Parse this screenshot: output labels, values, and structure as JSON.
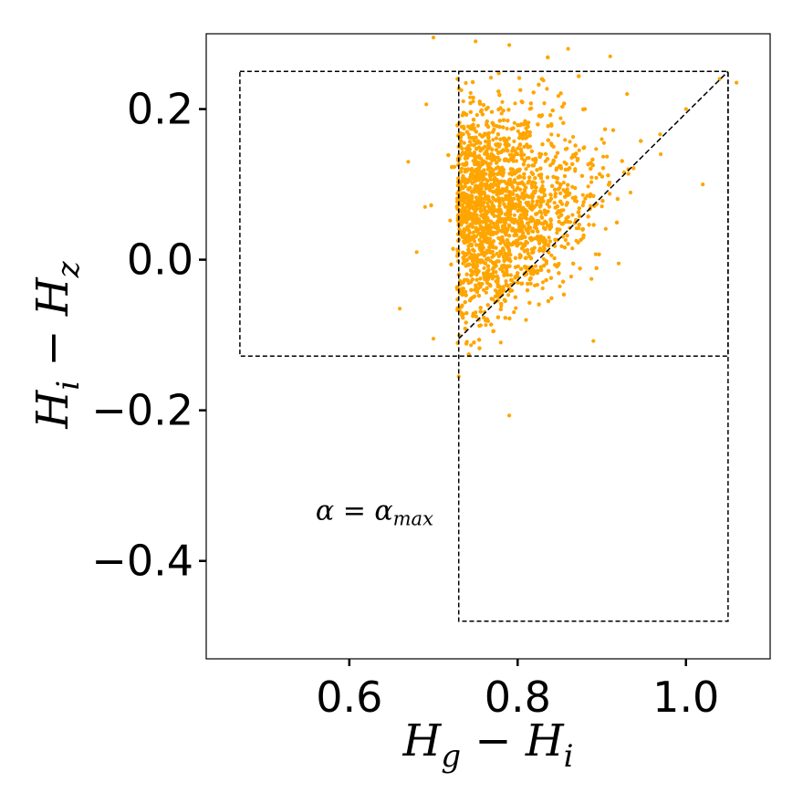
{
  "chart_data": {
    "type": "scatter",
    "title": "",
    "xlabel": {
      "base": "H",
      "sub": "g",
      "mid": " − ",
      "base2": "H",
      "sub2": "i"
    },
    "ylabel": {
      "base": "H",
      "sub": "i",
      "mid": " − ",
      "base2": "H",
      "sub2": "z"
    },
    "xlim": [
      0.43,
      1.1
    ],
    "ylim": [
      -0.53,
      0.3
    ],
    "xticks": [
      0.6,
      0.8,
      1.0
    ],
    "xtick_labels": [
      "0.6",
      "0.8",
      "1.0"
    ],
    "yticks": [
      -0.4,
      -0.2,
      0.0,
      0.2
    ],
    "ytick_labels": [
      "−0.4",
      "−0.2",
      "0.0",
      "0.2"
    ],
    "grid": false,
    "annotation": {
      "text_main": "α = α",
      "text_sub": "max",
      "x": 0.56,
      "y": -0.345
    },
    "point_color": "#FFA500",
    "guide_color": "#000000",
    "regions": [
      {
        "name": "upper-left-box",
        "x0": 0.47,
        "x1": 1.05,
        "y0": -0.128,
        "y1": 0.25
      },
      {
        "name": "right-box",
        "x0": 0.73,
        "x1": 1.05,
        "y0": -0.48,
        "y1": 0.25
      }
    ],
    "diagonal_line": {
      "x0": 0.73,
      "y0": -0.105,
      "x1": 1.05,
      "y1": 0.25
    },
    "series": [
      {
        "cluster_center": [
          0.79,
          0.06
        ],
        "approx_count": 4000,
        "sample_points": [
          [
            0.7,
            0.295
          ],
          [
            0.75,
            0.29
          ],
          [
            0.79,
            0.285
          ],
          [
            0.86,
            0.28
          ],
          [
            0.91,
            0.27
          ],
          [
            0.67,
            0.13
          ],
          [
            0.69,
            0.07
          ],
          [
            0.68,
            0.01
          ],
          [
            0.66,
            -0.065
          ],
          [
            0.7,
            -0.105
          ],
          [
            0.73,
            -0.155
          ],
          [
            0.79,
            -0.207
          ],
          [
            0.89,
            -0.108
          ],
          [
            0.92,
            -0.005
          ],
          [
            1.0,
            0.2
          ],
          [
            1.02,
            0.1
          ],
          [
            1.04,
            0.24
          ],
          [
            1.06,
            0.235
          ],
          [
            0.97,
            0.14
          ],
          [
            0.76,
            0.1
          ],
          [
            0.77,
            0.02
          ],
          [
            0.78,
            -0.04
          ],
          [
            0.8,
            0.14
          ],
          [
            0.82,
            0.09
          ],
          [
            0.84,
            0.18
          ],
          [
            0.86,
            0.12
          ],
          [
            0.88,
            0.2
          ],
          [
            0.9,
            0.16
          ],
          [
            0.93,
            0.22
          ],
          [
            0.75,
            -0.07
          ],
          [
            0.78,
            -0.11
          ],
          [
            0.81,
            -0.08
          ],
          [
            0.83,
            -0.03
          ],
          [
            0.85,
            0.04
          ]
        ]
      }
    ]
  }
}
